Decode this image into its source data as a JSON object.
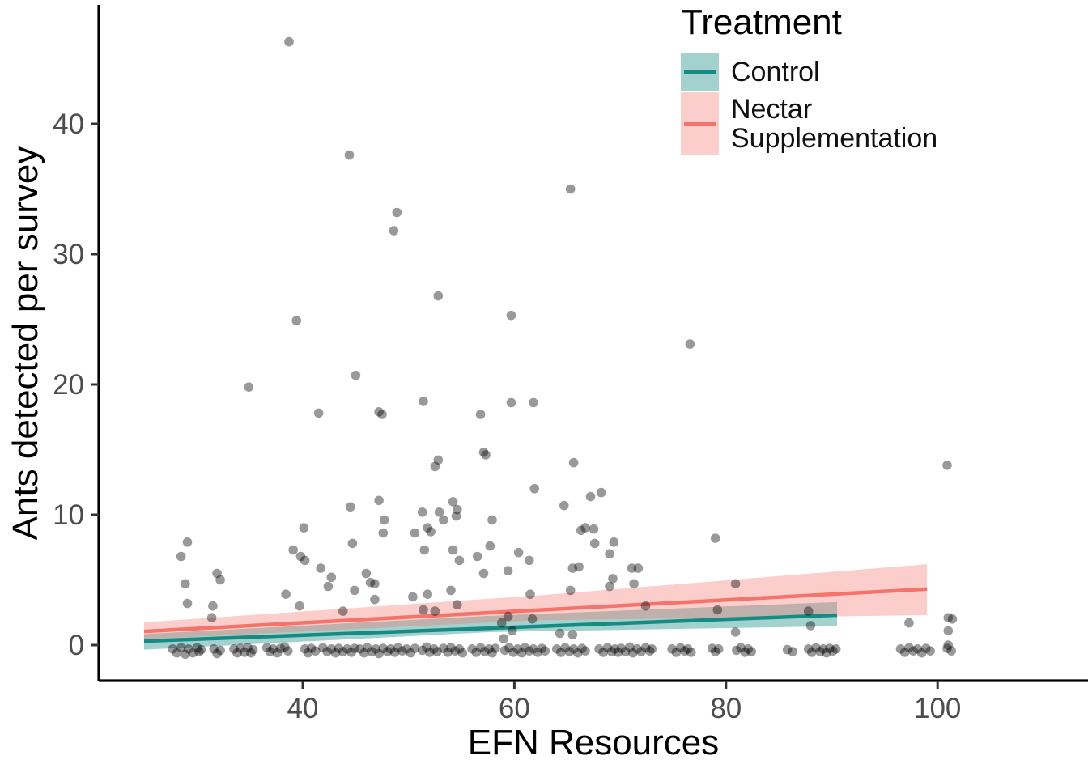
{
  "figure": {
    "background": "#ffffff"
  },
  "legend": {
    "title": "Treatment",
    "items": [
      {
        "label": "Control",
        "line_color": "#168b84",
        "fill_color": "rgba(22,139,132,0.40)"
      },
      {
        "label": "Nectar Supplementation",
        "line_color": "#f4736b",
        "fill_color": "rgba(246,118,110,0.36)"
      }
    ]
  },
  "chart_data": {
    "type": "scatter",
    "title": "",
    "xlabel": "EFN Resources",
    "ylabel": "Ants detected per survey",
    "xlim": [
      20.7,
      114.2
    ],
    "ylim": [
      -2.8,
      49.1
    ],
    "x_ticks": [
      40,
      60,
      80,
      100
    ],
    "y_ticks": [
      0,
      10,
      20,
      30,
      40
    ],
    "grid": false,
    "legend_position": "top-right-inside",
    "point_color": "rgba(0,0,0,0.40)",
    "point_radius": 5.8,
    "tick_label_color": "#4d4d4d",
    "axis_color": "#000000",
    "series": [
      {
        "name": "Control",
        "line_color": "#168b84",
        "fill_color": "rgba(22,139,132,0.40)",
        "trend": {
          "x": [
            25,
            90.5
          ],
          "y": [
            0.3,
            2.3
          ]
        },
        "ribbon": {
          "x": [
            25,
            57.8,
            90.5
          ],
          "upper": [
            0.85,
            2.25,
            3.3
          ],
          "lower": [
            -0.35,
            1.0,
            1.45
          ]
        }
      },
      {
        "name": "Nectar Supplementation",
        "line_color": "#f4736b",
        "fill_color": "rgba(246,118,110,0.36)",
        "trend": {
          "x": [
            25,
            99
          ],
          "y": [
            1.05,
            4.3
          ]
        },
        "ribbon": {
          "x": [
            25,
            62,
            99
          ],
          "upper": [
            1.75,
            3.8,
            6.2
          ],
          "lower": [
            0.45,
            1.9,
            2.3
          ]
        }
      }
    ],
    "points": [
      [
        38.7,
        46.3
      ],
      [
        44.4,
        37.6
      ],
      [
        65.3,
        35.0
      ],
      [
        48.9,
        33.2
      ],
      [
        48.6,
        31.8
      ],
      [
        52.8,
        26.8
      ],
      [
        59.7,
        25.3
      ],
      [
        39.4,
        24.9
      ],
      [
        76.6,
        23.1
      ],
      [
        45.0,
        20.7
      ],
      [
        34.9,
        19.8
      ],
      [
        51.4,
        18.7
      ],
      [
        59.7,
        18.6
      ],
      [
        61.8,
        18.6
      ],
      [
        47.2,
        17.9
      ],
      [
        47.5,
        17.7
      ],
      [
        41.5,
        17.8
      ],
      [
        56.8,
        17.7
      ],
      [
        57.1,
        14.8
      ],
      [
        57.3,
        14.6
      ],
      [
        52.8,
        14.2
      ],
      [
        65.6,
        14.0
      ],
      [
        100.9,
        13.8
      ],
      [
        52.5,
        13.7
      ],
      [
        61.9,
        12.0
      ],
      [
        68.2,
        11.7
      ],
      [
        67.2,
        11.4
      ],
      [
        47.2,
        11.1
      ],
      [
        54.2,
        11.0
      ],
      [
        64.7,
        10.7
      ],
      [
        44.5,
        10.6
      ],
      [
        54.6,
        10.4
      ],
      [
        51.3,
        10.2
      ],
      [
        52.9,
        10.2
      ],
      [
        54.5,
        9.9
      ],
      [
        53.3,
        9.6
      ],
      [
        57.9,
        9.6
      ],
      [
        47.7,
        9.6
      ],
      [
        40.1,
        9.0
      ],
      [
        51.8,
        9.0
      ],
      [
        66.7,
        9.0
      ],
      [
        67.5,
        8.9
      ],
      [
        66.3,
        8.8
      ],
      [
        52.1,
        8.7
      ],
      [
        47.6,
        8.6
      ],
      [
        50.6,
        8.6
      ],
      [
        79.0,
        8.2
      ],
      [
        29.1,
        7.9
      ],
      [
        69.4,
        7.9
      ],
      [
        44.7,
        7.8
      ],
      [
        67.6,
        7.8
      ],
      [
        57.7,
        7.6
      ],
      [
        39.1,
        7.3
      ],
      [
        51.5,
        7.3
      ],
      [
        54.2,
        7.3
      ],
      [
        60.4,
        7.1
      ],
      [
        69.0,
        7.0
      ],
      [
        28.5,
        6.8
      ],
      [
        39.8,
        6.8
      ],
      [
        56.5,
        6.8
      ],
      [
        40.2,
        6.5
      ],
      [
        54.8,
        6.5
      ],
      [
        61.4,
        6.5
      ],
      [
        66.1,
        6.0
      ],
      [
        41.7,
        5.9
      ],
      [
        65.5,
        5.9
      ],
      [
        71.1,
        5.9
      ],
      [
        71.7,
        5.9
      ],
      [
        59.4,
        5.7
      ],
      [
        31.9,
        5.5
      ],
      [
        46.0,
        5.5
      ],
      [
        57.1,
        5.5
      ],
      [
        42.7,
        5.2
      ],
      [
        69.3,
        5.1
      ],
      [
        32.2,
        5.0
      ],
      [
        46.4,
        4.8
      ],
      [
        28.9,
        4.7
      ],
      [
        46.8,
        4.7
      ],
      [
        71.3,
        4.7
      ],
      [
        80.9,
        4.7
      ],
      [
        42.4,
        4.5
      ],
      [
        69.0,
        4.5
      ],
      [
        44.9,
        4.2
      ],
      [
        54.0,
        4.2
      ],
      [
        65.3,
        4.2
      ],
      [
        38.4,
        3.9
      ],
      [
        51.8,
        3.9
      ],
      [
        61.5,
        3.9
      ],
      [
        50.4,
        3.7
      ],
      [
        46.8,
        3.5
      ],
      [
        29.1,
        3.2
      ],
      [
        54.6,
        3.1
      ],
      [
        31.5,
        3.0
      ],
      [
        39.7,
        3.0
      ],
      [
        72.4,
        3.0
      ],
      [
        43.8,
        2.6
      ],
      [
        51.4,
        2.7
      ],
      [
        79.2,
        2.7
      ],
      [
        87.8,
        2.6
      ],
      [
        52.5,
        2.6
      ],
      [
        59.4,
        2.2
      ],
      [
        31.4,
        2.1
      ],
      [
        101.0,
        2.1
      ],
      [
        101.4,
        2.0
      ],
      [
        61.7,
        2.0
      ],
      [
        58.8,
        1.7
      ],
      [
        97.3,
        1.7
      ],
      [
        88.0,
        1.5
      ],
      [
        59.8,
        1.1
      ],
      [
        101.0,
        1.1
      ],
      [
        80.9,
        1.0
      ],
      [
        64.3,
        0.9
      ],
      [
        65.5,
        0.8
      ],
      [
        59.0,
        0.5
      ],
      [
        101.0,
        0.0
      ],
      [
        27.7,
        -0.3
      ],
      [
        28.1,
        -0.6
      ],
      [
        28.5,
        -0.2
      ],
      [
        28.9,
        -0.7
      ],
      [
        29.2,
        -0.3
      ],
      [
        29.6,
        -0.6
      ],
      [
        30.0,
        -0.2
      ],
      [
        30.2,
        -0.5
      ],
      [
        30.4,
        -0.35
      ],
      [
        31.6,
        -0.3
      ],
      [
        31.9,
        -0.65
      ],
      [
        32.2,
        -0.4
      ],
      [
        33.5,
        -0.3
      ],
      [
        33.8,
        -0.6
      ],
      [
        34.1,
        -0.25
      ],
      [
        34.5,
        -0.55
      ],
      [
        34.8,
        -0.2
      ],
      [
        35.1,
        -0.6
      ],
      [
        35.3,
        -0.35
      ],
      [
        36.6,
        -0.2
      ],
      [
        36.9,
        -0.5
      ],
      [
        37.2,
        -0.3
      ],
      [
        37.6,
        -0.6
      ],
      [
        37.9,
        -0.25
      ],
      [
        38.3,
        -0.15
      ],
      [
        38.6,
        -0.45
      ],
      [
        40.2,
        -0.3
      ],
      [
        40.5,
        -0.6
      ],
      [
        40.8,
        -0.25
      ],
      [
        41.2,
        -0.45
      ],
      [
        41.9,
        -0.2
      ],
      [
        42.3,
        -0.5
      ],
      [
        42.7,
        -0.3
      ],
      [
        43.1,
        -0.6
      ],
      [
        43.4,
        -0.25
      ],
      [
        43.8,
        -0.5
      ],
      [
        44.2,
        -0.3
      ],
      [
        44.6,
        -0.55
      ],
      [
        44.9,
        -0.25
      ],
      [
        45.4,
        -0.3
      ],
      [
        45.8,
        -0.6
      ],
      [
        46.1,
        -0.2
      ],
      [
        46.5,
        -0.5
      ],
      [
        46.9,
        -0.3
      ],
      [
        47.2,
        -0.65
      ],
      [
        47.6,
        -0.25
      ],
      [
        48.0,
        -0.5
      ],
      [
        48.3,
        -0.3
      ],
      [
        48.7,
        -0.55
      ],
      [
        49.0,
        -0.2
      ],
      [
        49.4,
        -0.45
      ],
      [
        49.8,
        -0.3
      ],
      [
        50.2,
        -0.6
      ],
      [
        50.6,
        -0.25
      ],
      [
        51.3,
        -0.4
      ],
      [
        51.7,
        -0.15
      ],
      [
        52.0,
        -0.55
      ],
      [
        52.4,
        -0.3
      ],
      [
        52.7,
        -0.5
      ],
      [
        53.3,
        -0.25
      ],
      [
        53.7,
        -0.55
      ],
      [
        54.0,
        -0.2
      ],
      [
        54.4,
        -0.45
      ],
      [
        54.8,
        -0.3
      ],
      [
        55.1,
        -0.6
      ],
      [
        56.0,
        -0.3
      ],
      [
        56.4,
        -0.55
      ],
      [
        56.8,
        -0.2
      ],
      [
        57.2,
        -0.5
      ],
      [
        57.6,
        -0.3
      ],
      [
        57.9,
        -0.6
      ],
      [
        58.2,
        -0.25
      ],
      [
        59.1,
        -0.4
      ],
      [
        59.5,
        -0.2
      ],
      [
        59.9,
        -0.55
      ],
      [
        60.3,
        -0.3
      ],
      [
        60.7,
        -0.6
      ],
      [
        61.0,
        -0.2
      ],
      [
        61.4,
        -0.45
      ],
      [
        61.8,
        -0.3
      ],
      [
        62.2,
        -0.55
      ],
      [
        62.6,
        -0.25
      ],
      [
        62.9,
        -0.45
      ],
      [
        64.0,
        -0.3
      ],
      [
        64.4,
        -0.55
      ],
      [
        64.8,
        -0.2
      ],
      [
        65.2,
        -0.5
      ],
      [
        65.6,
        -0.3
      ],
      [
        66.0,
        -0.6
      ],
      [
        66.4,
        -0.25
      ],
      [
        66.7,
        -0.45
      ],
      [
        68.0,
        -0.3
      ],
      [
        68.4,
        -0.55
      ],
      [
        68.8,
        -0.2
      ],
      [
        69.2,
        -0.5
      ],
      [
        69.5,
        -0.3
      ],
      [
        69.8,
        -0.55
      ],
      [
        70.1,
        -0.25
      ],
      [
        70.5,
        -0.5
      ],
      [
        70.9,
        -0.15
      ],
      [
        71.2,
        -0.6
      ],
      [
        71.6,
        -0.3
      ],
      [
        72.0,
        -0.5
      ],
      [
        72.4,
        -0.2
      ],
      [
        72.8,
        -0.45
      ],
      [
        73.0,
        -0.3
      ],
      [
        74.9,
        -0.3
      ],
      [
        75.3,
        -0.55
      ],
      [
        75.7,
        -0.2
      ],
      [
        76.1,
        -0.45
      ],
      [
        76.4,
        -0.3
      ],
      [
        76.7,
        -0.55
      ],
      [
        78.7,
        -0.25
      ],
      [
        79.0,
        -0.5
      ],
      [
        79.3,
        -0.3
      ],
      [
        81.0,
        -0.4
      ],
      [
        81.4,
        -0.2
      ],
      [
        81.8,
        -0.55
      ],
      [
        82.1,
        -0.3
      ],
      [
        82.4,
        -0.5
      ],
      [
        85.8,
        -0.35
      ],
      [
        86.3,
        -0.5
      ],
      [
        87.8,
        -0.3
      ],
      [
        88.1,
        -0.55
      ],
      [
        88.5,
        -0.2
      ],
      [
        88.9,
        -0.5
      ],
      [
        89.2,
        -0.3
      ],
      [
        89.5,
        -0.6
      ],
      [
        89.8,
        -0.25
      ],
      [
        90.1,
        -0.45
      ],
      [
        90.4,
        -0.3
      ],
      [
        96.5,
        -0.3
      ],
      [
        96.9,
        -0.55
      ],
      [
        97.3,
        -0.2
      ],
      [
        97.7,
        -0.45
      ],
      [
        98.1,
        -0.3
      ],
      [
        98.5,
        -0.6
      ],
      [
        98.9,
        -0.25
      ],
      [
        99.3,
        -0.45
      ],
      [
        100.9,
        -0.25
      ],
      [
        101.3,
        -0.45
      ]
    ]
  }
}
